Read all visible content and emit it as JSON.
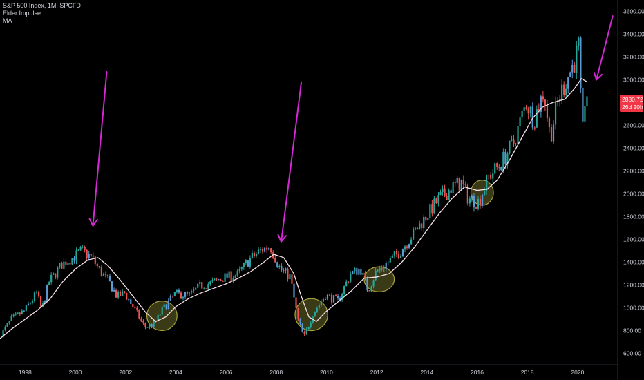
{
  "legend": {
    "symbol_line": "S&P 500 Index, 1M, SPCFD",
    "indicator_1": "Elder Impulse",
    "indicator_2": "MA"
  },
  "price_badge": {
    "value": "2830.72",
    "countdown": "26d 20h",
    "color": "#f23645"
  },
  "colors": {
    "background": "#000000",
    "up": "#26a69a",
    "down": "#ef5350",
    "neutral": "#5b9bd5",
    "ma": "#f8e1ea",
    "arrow": "#d629d6",
    "highlight_fill": "#6b6a2a",
    "highlight_stroke": "#a8a53c"
  },
  "chart_data": {
    "type": "candlestick",
    "title": "S&P 500 Index, 1M, SPCFD",
    "ylim": [
      500,
      3700
    ],
    "y_ticks": [
      600,
      800,
      1000,
      1200,
      1400,
      1600,
      1800,
      2000,
      2200,
      2400,
      2600,
      3000,
      3200,
      3400,
      3600
    ],
    "y_tick_labels": [
      "600.00",
      "800.00",
      "1000.00",
      "1200.00",
      "1400.00",
      "1600.00",
      "1800.00",
      "2000.00",
      "2200.00",
      "2400.00",
      "2600.00",
      "3000.00",
      "3200.00",
      "3400.00",
      "3600.00"
    ],
    "xlim": [
      1997.0,
      2021.6
    ],
    "x_ticks": [
      1998,
      2000,
      2002,
      2004,
      2006,
      2008,
      2010,
      2012,
      2014,
      2016,
      2018,
      2020
    ],
    "x_tick_labels": [
      "1998",
      "2000",
      "2002",
      "2004",
      "2006",
      "2008",
      "2010",
      "2012",
      "2014",
      "2016",
      "2018",
      "2020"
    ],
    "price_path": [
      [
        1997.0,
        740
      ],
      [
        1997.5,
        900
      ],
      [
        1998.0,
        970
      ],
      [
        1998.5,
        1130
      ],
      [
        1998.7,
        980
      ],
      [
        1999.0,
        1230
      ],
      [
        1999.5,
        1380
      ],
      [
        2000.0,
        1450
      ],
      [
        2000.3,
        1500
      ],
      [
        2000.7,
        1440
      ],
      [
        2001.0,
        1330
      ],
      [
        2001.4,
        1220
      ],
      [
        2001.7,
        1100
      ],
      [
        2002.0,
        1130
      ],
      [
        2002.5,
        950
      ],
      [
        2002.8,
        830
      ],
      [
        2003.2,
        860
      ],
      [
        2003.5,
        980
      ],
      [
        2004.0,
        1120
      ],
      [
        2004.6,
        1110
      ],
      [
        2005.0,
        1190
      ],
      [
        2005.5,
        1220
      ],
      [
        2006.0,
        1270
      ],
      [
        2006.5,
        1290
      ],
      [
        2007.0,
        1430
      ],
      [
        2007.4,
        1500
      ],
      [
        2007.8,
        1540
      ],
      [
        2008.2,
        1340
      ],
      [
        2008.6,
        1270
      ],
      [
        2008.9,
        900
      ],
      [
        2009.15,
        740
      ],
      [
        2009.5,
        950
      ],
      [
        2010.0,
        1110
      ],
      [
        2010.5,
        1060
      ],
      [
        2011.0,
        1300
      ],
      [
        2011.4,
        1340
      ],
      [
        2011.7,
        1150
      ],
      [
        2012.0,
        1310
      ],
      [
        2012.5,
        1400
      ],
      [
        2013.0,
        1500
      ],
      [
        2013.5,
        1650
      ],
      [
        2014.0,
        1800
      ],
      [
        2014.5,
        1950
      ],
      [
        2015.0,
        2050
      ],
      [
        2015.4,
        2100
      ],
      [
        2015.7,
        1960
      ],
      [
        2016.1,
        1930
      ],
      [
        2016.5,
        2150
      ],
      [
        2017.0,
        2270
      ],
      [
        2017.5,
        2450
      ],
      [
        2018.0,
        2800
      ],
      [
        2018.3,
        2650
      ],
      [
        2018.7,
        2900
      ],
      [
        2018.95,
        2500
      ],
      [
        2019.3,
        2850
      ],
      [
        2019.5,
        2950
      ],
      [
        2019.9,
        3150
      ],
      [
        2020.1,
        3300
      ],
      [
        2020.2,
        2600
      ],
      [
        2020.25,
        2550
      ],
      [
        2020.35,
        2880
      ]
    ],
    "moving_average": [
      [
        1997.0,
        730
      ],
      [
        1997.5,
        820
      ],
      [
        1998.0,
        900
      ],
      [
        1998.5,
        980
      ],
      [
        1999.0,
        1080
      ],
      [
        1999.5,
        1230
      ],
      [
        2000.0,
        1340
      ],
      [
        2000.5,
        1420
      ],
      [
        2000.9,
        1440
      ],
      [
        2001.3,
        1370
      ],
      [
        2001.8,
        1240
      ],
      [
        2002.3,
        1100
      ],
      [
        2002.8,
        960
      ],
      [
        2003.2,
        880
      ],
      [
        2003.6,
        920
      ],
      [
        2004.0,
        1010
      ],
      [
        2004.5,
        1080
      ],
      [
        2005.0,
        1130
      ],
      [
        2005.5,
        1170
      ],
      [
        2006.0,
        1210
      ],
      [
        2006.5,
        1260
      ],
      [
        2007.0,
        1320
      ],
      [
        2007.5,
        1400
      ],
      [
        2007.9,
        1470
      ],
      [
        2008.3,
        1440
      ],
      [
        2008.7,
        1300
      ],
      [
        2009.0,
        1100
      ],
      [
        2009.3,
        920
      ],
      [
        2009.6,
        880
      ],
      [
        2010.0,
        970
      ],
      [
        2010.5,
        1060
      ],
      [
        2011.0,
        1150
      ],
      [
        2011.5,
        1260
      ],
      [
        2012.0,
        1270
      ],
      [
        2012.5,
        1300
      ],
      [
        2013.0,
        1400
      ],
      [
        2013.5,
        1530
      ],
      [
        2014.0,
        1680
      ],
      [
        2014.5,
        1830
      ],
      [
        2015.0,
        1960
      ],
      [
        2015.5,
        2060
      ],
      [
        2016.0,
        2030
      ],
      [
        2016.4,
        2040
      ],
      [
        2016.8,
        2120
      ],
      [
        2017.3,
        2300
      ],
      [
        2017.8,
        2500
      ],
      [
        2018.2,
        2660
      ],
      [
        2018.6,
        2760
      ],
      [
        2019.0,
        2800
      ],
      [
        2019.5,
        2830
      ],
      [
        2019.9,
        2930
      ],
      [
        2020.15,
        3010
      ],
      [
        2020.4,
        2980
      ]
    ],
    "highlights": [
      {
        "x": 2003.45,
        "y": 930,
        "rx_years": 0.6,
        "ry_price": 130
      },
      {
        "x": 2009.4,
        "y": 940,
        "rx_years": 0.65,
        "ry_price": 140
      },
      {
        "x": 2012.1,
        "y": 1250,
        "rx_years": 0.6,
        "ry_price": 110
      },
      {
        "x": 2016.2,
        "y": 2010,
        "rx_years": 0.45,
        "ry_price": 110
      }
    ],
    "arrows": [
      {
        "from": [
          2001.25,
          3070
        ],
        "to": [
          2000.7,
          1720
        ]
      },
      {
        "from": [
          2009.0,
          2980
        ],
        "to": [
          2008.2,
          1580
        ]
      },
      {
        "from": [
          2021.4,
          3560
        ],
        "to": [
          2020.75,
          3000
        ]
      }
    ]
  }
}
